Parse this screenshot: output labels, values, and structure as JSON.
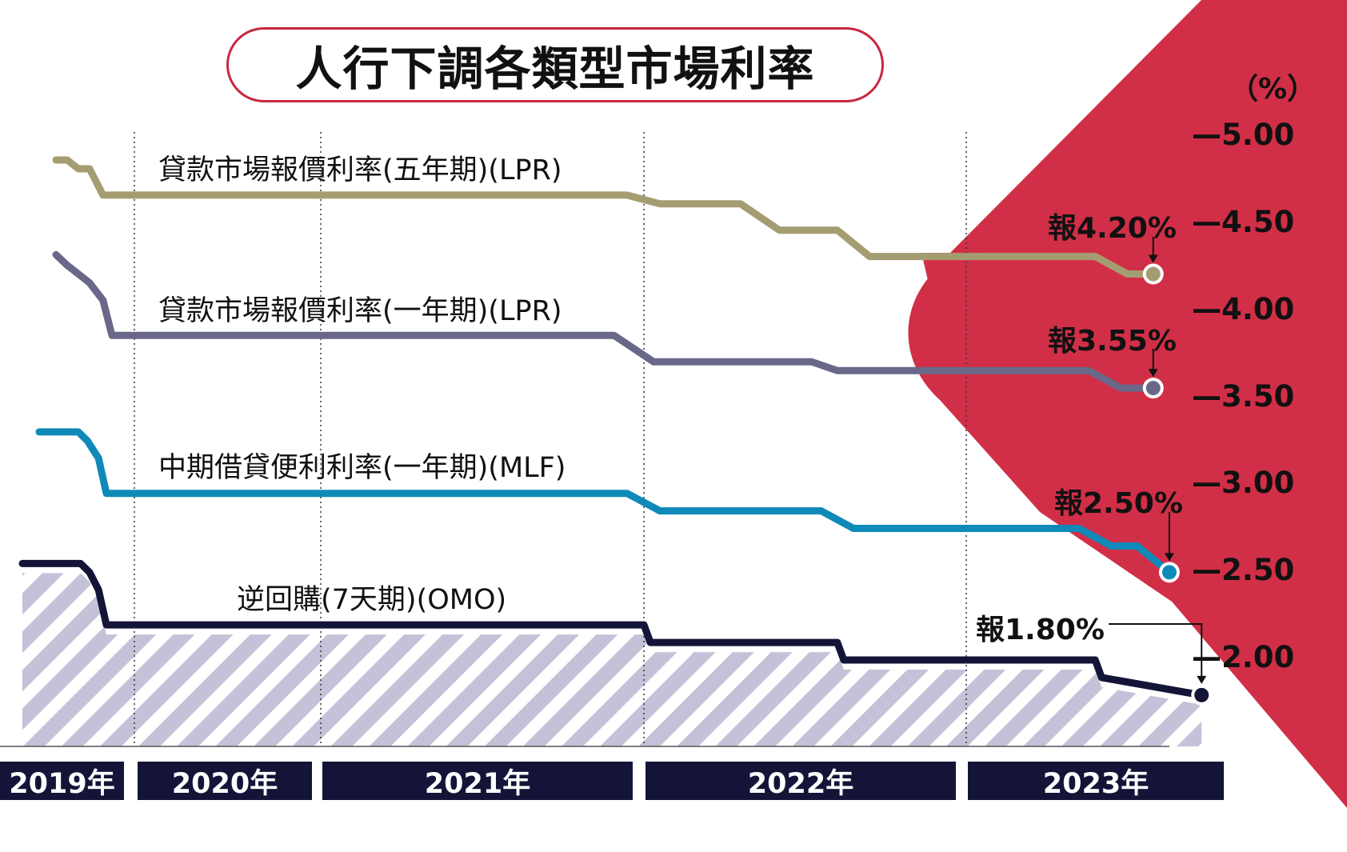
{
  "title": "人行下調各類型市場利率",
  "chart_data": {
    "type": "line",
    "title": "人行下調各類型市場利率",
    "y_unit": "（%）",
    "ylim": [
      1.0,
      5.3
    ],
    "yticks": [
      "5.00",
      "4.50",
      "4.00",
      "3.50",
      "3.00",
      "2.50",
      "2.00"
    ],
    "x_range": [
      2019.0,
      2023.9
    ],
    "years": [
      "2019年",
      "2020年",
      "2021年",
      "2022年",
      "2023年"
    ],
    "grid": "dotted vertical lines at year boundaries",
    "series": [
      {
        "name": "貸款市場報價利率(五年期)(LPR)",
        "color": "#a59d72",
        "x": [
          2019.3,
          2019.4,
          2019.5,
          2019.6,
          2019.72,
          2019.8,
          2021.95,
          2022.05,
          2022.3,
          2022.42,
          2022.6,
          2022.7,
          2023.4,
          2023.5,
          2023.58
        ],
        "y": [
          4.85,
          4.85,
          4.8,
          4.8,
          4.65,
          4.65,
          4.65,
          4.6,
          4.6,
          4.45,
          4.45,
          4.3,
          4.3,
          4.2,
          4.2
        ],
        "end_label": "報4.20%"
      },
      {
        "name": "貸款市場報價利率(一年期)(LPR)",
        "color": "#6a6888",
        "x": [
          2019.3,
          2019.4,
          2019.5,
          2019.6,
          2019.72,
          2019.8,
          2021.91,
          2022.03,
          2022.52,
          2022.6,
          2023.38,
          2023.48,
          2023.58
        ],
        "y": [
          4.31,
          4.25,
          4.2,
          4.15,
          4.05,
          3.85,
          3.85,
          3.7,
          3.7,
          3.65,
          3.65,
          3.55,
          3.55
        ],
        "end_label": "報3.55%"
      },
      {
        "name": "中期借貸便利利率(一年期)(MLF)",
        "color": "#0f8ab8",
        "x": [
          2019.15,
          2019.5,
          2019.58,
          2019.68,
          2019.75,
          2019.8,
          2021.95,
          2022.05,
          2022.55,
          2022.65,
          2023.35,
          2023.45,
          2023.53,
          2023.63
        ],
        "y": [
          3.3,
          3.3,
          3.25,
          3.15,
          2.95,
          2.95,
          2.95,
          2.85,
          2.85,
          2.75,
          2.75,
          2.65,
          2.65,
          2.5
        ],
        "end_label": "報2.50%"
      },
      {
        "name": "逆回購(7天期)(OMO)",
        "color": "#141438",
        "x": [
          2019.0,
          2019.52,
          2019.6,
          2019.68,
          2019.75,
          2019.8,
          2022.0,
          2022.02,
          2022.6,
          2022.62,
          2023.4,
          2023.42,
          2023.73
        ],
        "y": [
          2.55,
          2.55,
          2.5,
          2.4,
          2.2,
          2.2,
          2.2,
          2.1,
          2.1,
          2.0,
          2.0,
          1.9,
          1.8
        ],
        "end_label": "報1.80%"
      }
    ]
  }
}
